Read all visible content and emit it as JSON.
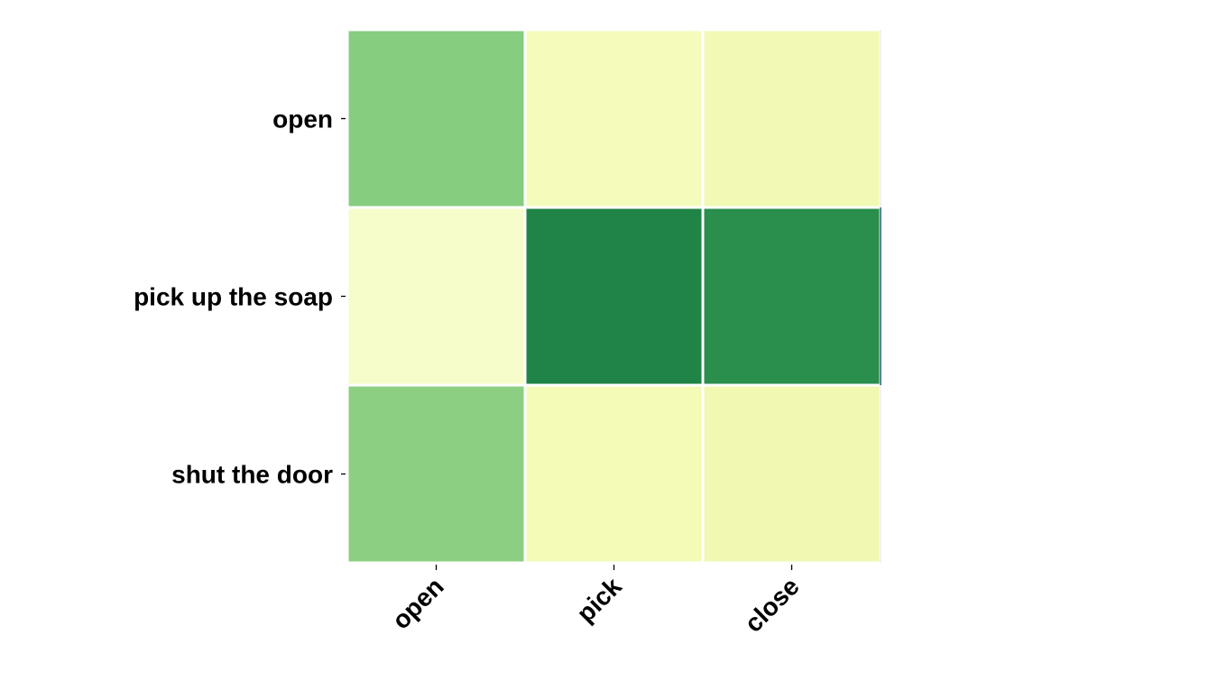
{
  "chart_data": {
    "type": "heatmap",
    "x_labels": [
      "open",
      "pick",
      "close"
    ],
    "y_labels": [
      "open",
      "pick up the soap",
      "shut the door"
    ],
    "values": [
      [
        0.42,
        0.05,
        0.08
      ],
      [
        0.03,
        0.92,
        0.86
      ],
      [
        0.4,
        0.05,
        0.08
      ]
    ],
    "colors": [
      [
        "#87cd80",
        "#f5fbbb",
        "#f2f9b4"
      ],
      [
        "#f7fccb",
        "#1f8445",
        "#2a8e4d"
      ],
      [
        "#8dcf82",
        "#f4fbb7",
        "#f0f8b2"
      ]
    ],
    "colorscale": "YlGn",
    "title": "",
    "xlabel": "",
    "ylabel": "",
    "grid": false,
    "legend": "none"
  }
}
